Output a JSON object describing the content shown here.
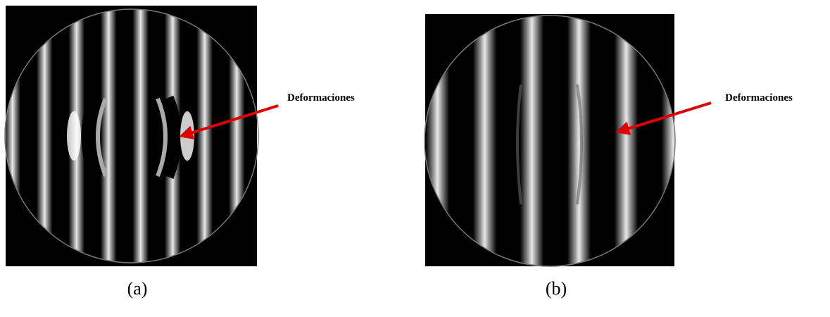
{
  "panels": [
    {
      "label": "(a)",
      "annotation": "Deformaciones"
    },
    {
      "label": "(b)",
      "annotation": "Deformaciones"
    }
  ]
}
